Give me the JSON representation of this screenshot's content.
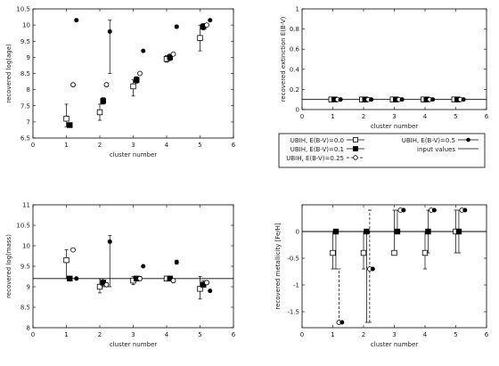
{
  "chart_data": [
    {
      "type": "scatter",
      "xlabel": "cluster number",
      "ylabel": "recovered log(age)",
      "xlim": [
        0,
        6
      ],
      "ylim": [
        6.5,
        10.5
      ],
      "xticks": [
        0,
        1,
        2,
        3,
        4,
        5,
        6
      ],
      "yticks": [
        6.5,
        7,
        7.5,
        8,
        8.5,
        9,
        9.5,
        10,
        10.5
      ],
      "ytick_labels": [
        "6.5",
        "7",
        "7.5",
        "8",
        "8.5",
        "9",
        "9.5",
        "10",
        "10.5"
      ],
      "reference_line": null,
      "series": [
        {
          "marker": "open-square",
          "points": [
            {
              "x": 1,
              "y": 7.1,
              "lo": 6.85,
              "hi": 7.55
            },
            {
              "x": 2,
              "y": 7.3,
              "lo": 7.05,
              "hi": 7.55
            },
            {
              "x": 3,
              "y": 8.1,
              "lo": 7.8,
              "hi": 8.3
            },
            {
              "x": 4,
              "y": 8.95,
              "lo": 8.85,
              "hi": 9.05
            },
            {
              "x": 5,
              "y": 9.6,
              "lo": 9.2,
              "hi": 10.0
            }
          ]
        },
        {
          "marker": "filled-square",
          "points": [
            {
              "x": 1.1,
              "y": 6.9,
              "lo": 6.88,
              "hi": 6.92
            },
            {
              "x": 2.1,
              "y": 7.65,
              "lo": 7.55,
              "hi": 7.75
            },
            {
              "x": 3.1,
              "y": 8.3,
              "lo": 8.2,
              "hi": 8.4
            },
            {
              "x": 4.1,
              "y": 9.0,
              "lo": 8.9,
              "hi": 9.1
            },
            {
              "x": 5.1,
              "y": 9.95,
              "lo": 9.85,
              "hi": 10.05
            }
          ]
        },
        {
          "marker": "open-circle",
          "points": [
            {
              "x": 1.2,
              "y": 8.15,
              "lo": 8.1,
              "hi": 8.2
            },
            {
              "x": 2.2,
              "y": 8.15,
              "lo": 8.1,
              "hi": 8.2
            },
            {
              "x": 3.2,
              "y": 8.5,
              "lo": 8.45,
              "hi": 8.55
            },
            {
              "x": 4.2,
              "y": 9.1,
              "lo": 9.05,
              "hi": 9.15
            },
            {
              "x": 5.2,
              "y": 10.0,
              "lo": 9.95,
              "hi": 10.05
            }
          ]
        },
        {
          "marker": "filled-circle",
          "points": [
            {
              "x": 1.3,
              "y": 10.15,
              "lo": 10.15,
              "hi": 10.15
            },
            {
              "x": 2.3,
              "y": 9.8,
              "lo": 8.5,
              "hi": 10.15
            },
            {
              "x": 3.3,
              "y": 9.2,
              "lo": 9.2,
              "hi": 9.2
            },
            {
              "x": 4.3,
              "y": 9.95,
              "lo": 9.9,
              "hi": 10.0
            },
            {
              "x": 5.3,
              "y": 10.15,
              "lo": 10.15,
              "hi": 10.15
            }
          ]
        }
      ]
    },
    {
      "type": "scatter",
      "xlabel": "cluster number",
      "ylabel": "recovered extinction E(B-V)",
      "xlim": [
        0,
        6
      ],
      "ylim": [
        0,
        1
      ],
      "xticks": [
        0,
        1,
        2,
        3,
        4,
        5,
        6
      ],
      "yticks": [
        0,
        0.2,
        0.4,
        0.6,
        0.8,
        1
      ],
      "ytick_labels": [
        "0",
        "0.2",
        "0.4",
        "0.6",
        "0.8",
        "1"
      ],
      "reference_line": 0.1,
      "series": [
        {
          "marker": "open-square",
          "points": [
            {
              "x": 0.95,
              "y": 0.1
            },
            {
              "x": 1.95,
              "y": 0.1
            },
            {
              "x": 2.95,
              "y": 0.1
            },
            {
              "x": 3.95,
              "y": 0.1
            },
            {
              "x": 4.95,
              "y": 0.1
            }
          ]
        },
        {
          "marker": "filled-square",
          "points": [
            {
              "x": 1.05,
              "y": 0.1
            },
            {
              "x": 2.05,
              "y": 0.1
            },
            {
              "x": 3.05,
              "y": 0.1
            },
            {
              "x": 4.05,
              "y": 0.1
            },
            {
              "x": 5.05,
              "y": 0.1
            }
          ]
        },
        {
          "marker": "open-circle",
          "points": [
            {
              "x": 1.15,
              "y": 0.1
            },
            {
              "x": 2.15,
              "y": 0.1
            },
            {
              "x": 3.15,
              "y": 0.1
            },
            {
              "x": 4.15,
              "y": 0.1
            },
            {
              "x": 5.15,
              "y": 0.1
            }
          ]
        },
        {
          "marker": "filled-circle",
          "points": [
            {
              "x": 1.25,
              "y": 0.1
            },
            {
              "x": 2.25,
              "y": 0.1
            },
            {
              "x": 3.25,
              "y": 0.1
            },
            {
              "x": 4.25,
              "y": 0.1
            },
            {
              "x": 5.25,
              "y": 0.1
            }
          ]
        }
      ]
    },
    {
      "type": "scatter",
      "xlabel": "cluster number",
      "ylabel": "recovered log(mass)",
      "xlim": [
        0,
        6
      ],
      "ylim": [
        8,
        11
      ],
      "xticks": [
        0,
        1,
        2,
        3,
        4,
        5,
        6
      ],
      "yticks": [
        8,
        8.5,
        9,
        9.5,
        10,
        10.5,
        11
      ],
      "ytick_labels": [
        "8",
        "8.5",
        "9",
        "9.5",
        "10",
        "10.5",
        "11"
      ],
      "reference_line": 9.2,
      "series": [
        {
          "marker": "open-square",
          "points": [
            {
              "x": 1,
              "y": 9.65,
              "lo": 9.2,
              "hi": 9.9
            },
            {
              "x": 2,
              "y": 9.0,
              "lo": 8.85,
              "hi": 9.2
            },
            {
              "x": 3,
              "y": 9.15,
              "lo": 9.05,
              "hi": 9.25
            },
            {
              "x": 4,
              "y": 9.2,
              "lo": 9.15,
              "hi": 9.25
            },
            {
              "x": 5,
              "y": 8.95,
              "lo": 8.7,
              "hi": 9.25
            }
          ]
        },
        {
          "marker": "filled-square",
          "points": [
            {
              "x": 1.1,
              "y": 9.2,
              "lo": 9.2,
              "hi": 9.2
            },
            {
              "x": 2.1,
              "y": 9.1,
              "lo": 9.0,
              "hi": 9.2
            },
            {
              "x": 3.1,
              "y": 9.2,
              "lo": 9.15,
              "hi": 9.25
            },
            {
              "x": 4.1,
              "y": 9.2,
              "lo": 9.15,
              "hi": 9.25
            },
            {
              "x": 5.1,
              "y": 9.05,
              "lo": 9.0,
              "hi": 9.15
            }
          ]
        },
        {
          "marker": "open-circle",
          "points": [
            {
              "x": 1.2,
              "y": 9.9,
              "lo": 9.88,
              "hi": 9.92
            },
            {
              "x": 2.2,
              "y": 9.05,
              "lo": 9.0,
              "hi": 9.1
            },
            {
              "x": 3.2,
              "y": 9.2,
              "lo": 9.15,
              "hi": 9.25
            },
            {
              "x": 4.2,
              "y": 9.15,
              "lo": 9.1,
              "hi": 9.2
            },
            {
              "x": 5.2,
              "y": 9.1,
              "lo": 9.05,
              "hi": 9.15
            }
          ]
        },
        {
          "marker": "filled-circle",
          "points": [
            {
              "x": 1.3,
              "y": 9.2,
              "lo": 9.2,
              "hi": 9.2
            },
            {
              "x": 2.3,
              "y": 10.1,
              "lo": 9.0,
              "hi": 10.25
            },
            {
              "x": 3.3,
              "y": 9.5,
              "lo": 9.5,
              "hi": 9.5
            },
            {
              "x": 4.3,
              "y": 9.6,
              "lo": 9.55,
              "hi": 9.65
            },
            {
              "x": 5.3,
              "y": 8.9,
              "lo": 8.9,
              "hi": 8.9
            }
          ]
        }
      ]
    },
    {
      "type": "scatter",
      "xlabel": "cluster number",
      "ylabel": "recovered metallicity [Fe/H]",
      "xlim": [
        0,
        6
      ],
      "ylim": [
        -1.8,
        0.5
      ],
      "xticks": [
        0,
        1,
        2,
        3,
        4,
        5,
        6
      ],
      "yticks": [
        -1.5,
        -1,
        -0.5,
        0
      ],
      "ytick_labels": [
        "-1.5",
        "-1",
        "-0.5",
        "0"
      ],
      "reference_line": 0,
      "series": [
        {
          "marker": "open-square",
          "points": [
            {
              "x": 1,
              "y": -0.4,
              "lo": -0.7,
              "hi": 0
            },
            {
              "x": 2,
              "y": -0.4,
              "lo": -0.7,
              "hi": 0
            },
            {
              "x": 3,
              "y": -0.4,
              "lo": -0.4,
              "hi": 0.4
            },
            {
              "x": 4,
              "y": -0.4,
              "lo": -0.7,
              "hi": 0
            },
            {
              "x": 5,
              "y": 0,
              "lo": -0.4,
              "hi": 0.4
            }
          ]
        },
        {
          "marker": "filled-square",
          "points": [
            {
              "x": 1.1,
              "y": 0,
              "lo": -0.7,
              "hi": 0
            },
            {
              "x": 2.1,
              "y": 0,
              "lo": -1.7,
              "hi": 0
            },
            {
              "x": 3.1,
              "y": 0,
              "lo": 0,
              "hi": 0.4
            },
            {
              "x": 4.1,
              "y": 0,
              "lo": -0.4,
              "hi": 0.4
            },
            {
              "x": 5.1,
              "y": 0,
              "lo": -0.4,
              "hi": 0.4
            }
          ]
        },
        {
          "marker": "open-circle",
          "points": [
            {
              "x": 1.2,
              "y": -1.7,
              "lo": -1.7,
              "hi": -0.7
            },
            {
              "x": 2.2,
              "y": -0.7,
              "lo": -1.7,
              "hi": 0.4
            },
            {
              "x": 3.2,
              "y": 0.4,
              "lo": 0.4,
              "hi": 0.4
            },
            {
              "x": 4.2,
              "y": 0.4,
              "lo": 0.4,
              "hi": 0.4
            },
            {
              "x": 5.2,
              "y": 0.4,
              "lo": 0.4,
              "hi": 0.4
            }
          ]
        },
        {
          "marker": "filled-circle",
          "points": [
            {
              "x": 1.3,
              "y": -1.7,
              "lo": -1.7,
              "hi": -1.7
            },
            {
              "x": 2.3,
              "y": -0.7,
              "lo": -0.7,
              "hi": -0.7
            },
            {
              "x": 3.3,
              "y": 0.4,
              "lo": 0.4,
              "hi": 0.4
            },
            {
              "x": 4.3,
              "y": 0.4,
              "lo": 0.4,
              "hi": 0.4
            },
            {
              "x": 5.3,
              "y": 0.4,
              "lo": 0.4,
              "hi": 0.4
            }
          ]
        }
      ]
    }
  ],
  "legend": {
    "entries": [
      {
        "label": "UBIH, E(B-V)=0.0",
        "marker": "open-square"
      },
      {
        "label": "UBIH, E(B-V)=0.1",
        "marker": "filled-square"
      },
      {
        "label": "UBIH, E(B-V)=0.25",
        "marker": "open-circle"
      },
      {
        "label": "UBIH, E(B-V)=0.5",
        "marker": "filled-circle"
      },
      {
        "label": "input values",
        "marker": "line"
      }
    ]
  }
}
